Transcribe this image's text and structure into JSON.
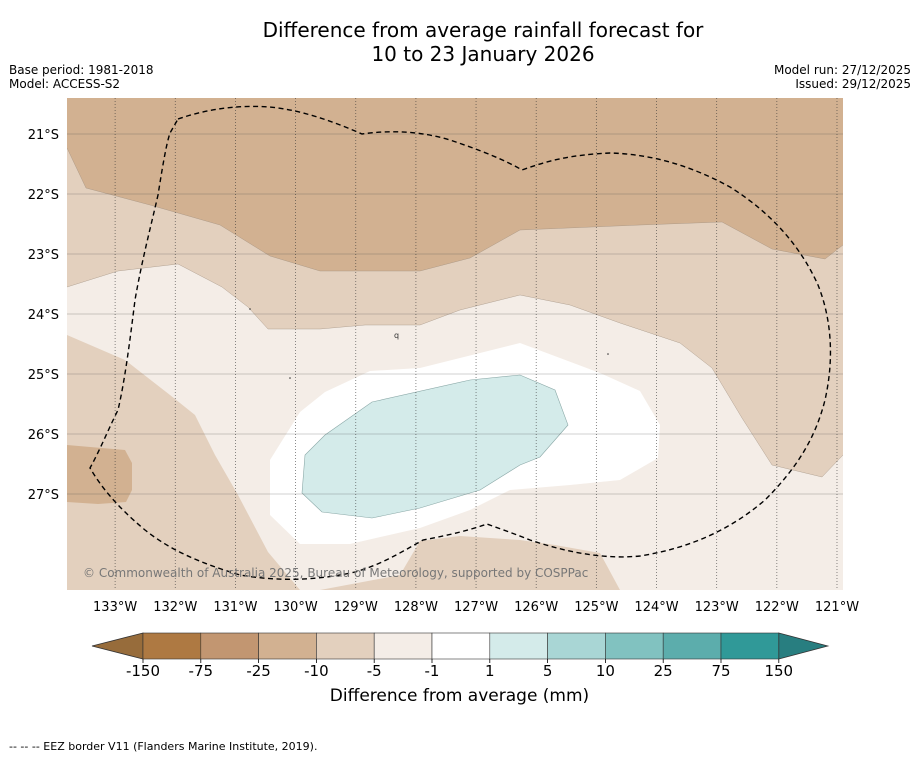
{
  "title": {
    "line1": "Difference from average rainfall forecast for",
    "line2": "10 to 23 January 2026"
  },
  "meta": {
    "base_period": "Base period: 1981-2018",
    "model": "Model: ACCESS-S2",
    "model_run": "Model run: 27/12/2025",
    "issued": "Issued: 29/12/2025"
  },
  "map": {
    "lon_range": [
      -133.8,
      -120.9
    ],
    "lat_range": [
      -28.6,
      -20.4
    ],
    "lat_labels": [
      "21°S",
      "22°S",
      "23°S",
      "24°S",
      "25°S",
      "26°S",
      "27°S"
    ],
    "lon_labels": [
      "133°W",
      "132°W",
      "131°W",
      "130°W",
      "129°W",
      "128°W",
      "127°W",
      "126°W",
      "125°W",
      "124°W",
      "123°W",
      "122°W",
      "121°W"
    ],
    "copyright": "© Commonwealth of Australia 2025, Bureau of Meteorology, supported by COSPPac",
    "outline": "dashed EEZ border"
  },
  "colorbar": {
    "ticks": [
      "-150",
      "-75",
      "-25",
      "-10",
      "-5",
      "-1",
      "1",
      "5",
      "10",
      "25",
      "75",
      "150"
    ],
    "colors": [
      "#ae7942",
      "#c29671",
      "#d2b191",
      "#e3d0be",
      "#f4ede7",
      "#ffffff",
      "#d4ebea",
      "#a9d6d5",
      "#81c2c0",
      "#5cadac",
      "#309998"
    ],
    "under_color": "#976c3b",
    "over_color": "#287e80",
    "label": "Difference from average (mm)"
  },
  "footnote": "--  --  -- EEZ border V11 (Flanders Marine Institute, 2019)."
}
